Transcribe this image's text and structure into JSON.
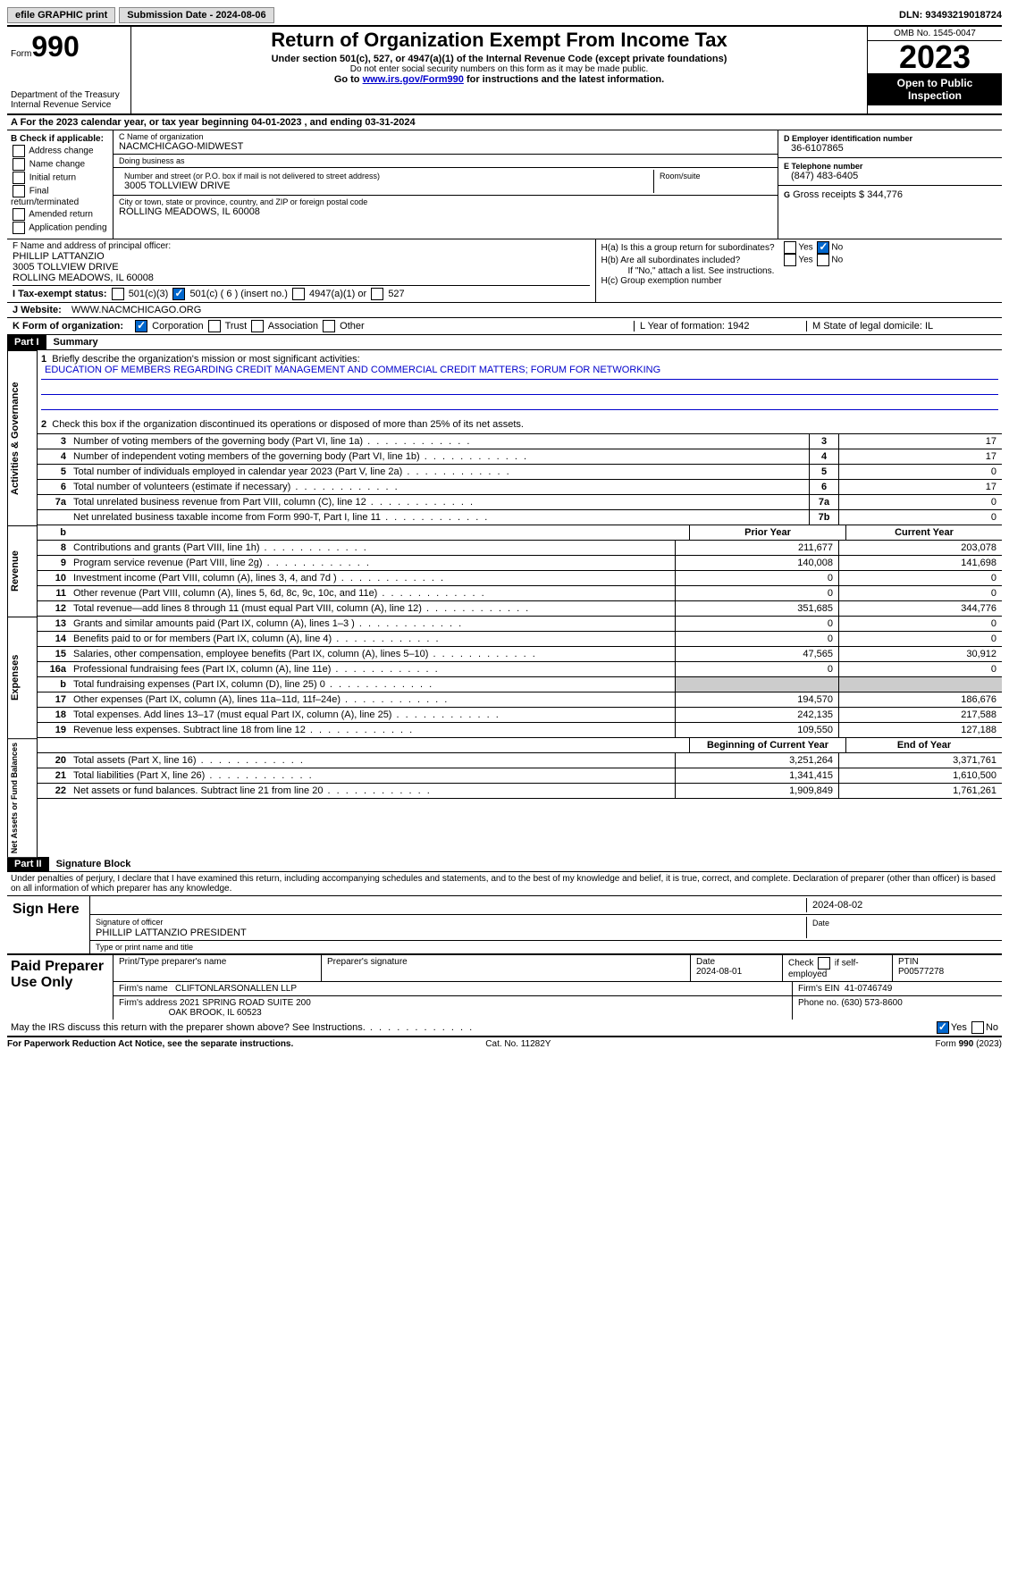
{
  "topbar": {
    "efile": "efile GRAPHIC print",
    "submission": "Submission Date - 2024-08-06",
    "dln": "DLN: 93493219018724"
  },
  "header": {
    "form_label": "Form",
    "form_num": "990",
    "dept": "Department of the Treasury\nInternal Revenue Service",
    "title": "Return of Organization Exempt From Income Tax",
    "sub": "Under section 501(c), 527, or 4947(a)(1) of the Internal Revenue Code (except private foundations)",
    "sub2": "Do not enter social security numbers on this form as it may be made public.",
    "go_pre": "Go to ",
    "go_link": "www.irs.gov/Form990",
    "go_post": " for instructions and the latest information.",
    "omb": "OMB No. 1545-0047",
    "year": "2023",
    "open": "Open to Public Inspection"
  },
  "A": {
    "text": "A For the 2023 calendar year, or tax year beginning 04-01-2023   , and ending 03-31-2024"
  },
  "B": {
    "label": "B Check if applicable:",
    "opts": [
      "Address change",
      "Name change",
      "Initial return",
      "Final return/terminated",
      "Amended return",
      "Application pending"
    ]
  },
  "C": {
    "name_lbl": "C Name of organization",
    "name": "NACMCHICAGO-MIDWEST",
    "dba_lbl": "Doing business as",
    "dba": "",
    "addr_lbl": "Number and street (or P.O. box if mail is not delivered to street address)",
    "addr": "3005 TOLLVIEW DRIVE",
    "room_lbl": "Room/suite",
    "city_lbl": "City or town, state or province, country, and ZIP or foreign postal code",
    "city": "ROLLING MEADOWS, IL  60008"
  },
  "D": {
    "lbl": "D Employer identification number",
    "val": "36-6107865"
  },
  "E": {
    "lbl": "E Telephone number",
    "val": "(847) 483-6405"
  },
  "G": {
    "lbl": "G",
    "text": "Gross receipts $ 344,776"
  },
  "F": {
    "lbl": "F  Name and address of principal officer:",
    "name": "PHILLIP LATTANZIO",
    "addr1": "3005 TOLLVIEW DRIVE",
    "addr2": "ROLLING MEADOWS, IL  60008"
  },
  "H": {
    "a": "H(a)  Is this a group return for subordinates?",
    "b": "H(b)  Are all subordinates included?",
    "b2": "If \"No,\" attach a list. See instructions.",
    "c": "H(c)  Group exemption number"
  },
  "I": {
    "lbl": "I   Tax-exempt status:",
    "o1": "501(c)(3)",
    "o2": "501(c) ( 6 ) (insert no.)",
    "o3": "4947(a)(1) or",
    "o4": "527"
  },
  "J": {
    "lbl": "J   Website:",
    "val": "WWW.NACMCHICAGO.ORG"
  },
  "K": {
    "lbl": "K Form of organization:",
    "o1": "Corporation",
    "o2": "Trust",
    "o3": "Association",
    "o4": "Other"
  },
  "L": {
    "text": "L Year of formation: 1942"
  },
  "M": {
    "text": "M State of legal domicile: IL"
  },
  "part1": {
    "num": "Part I",
    "title": "Summary"
  },
  "vtabs": {
    "ag": "Activities & Governance",
    "rev": "Revenue",
    "exp": "Expenses",
    "na": "Net Assets or Fund Balances"
  },
  "summary": {
    "q1": "Briefly describe the organization's mission or most significant activities:",
    "mission": "EDUCATION OF MEMBERS REGARDING CREDIT MANAGEMENT AND COMMERCIAL CREDIT MATTERS; FORUM FOR NETWORKING",
    "q2": "Check this box      if the organization discontinued its operations or disposed of more than 25% of its net assets.",
    "rows_ag": [
      {
        "n": "3",
        "d": "Number of voting members of the governing body (Part VI, line 1a)",
        "cn": "3",
        "v": "17"
      },
      {
        "n": "4",
        "d": "Number of independent voting members of the governing body (Part VI, line 1b)",
        "cn": "4",
        "v": "17"
      },
      {
        "n": "5",
        "d": "Total number of individuals employed in calendar year 2023 (Part V, line 2a)",
        "cn": "5",
        "v": "0"
      },
      {
        "n": "6",
        "d": "Total number of volunteers (estimate if necessary)",
        "cn": "6",
        "v": "17"
      },
      {
        "n": "7a",
        "d": "Total unrelated business revenue from Part VIII, column (C), line 12",
        "cn": "7a",
        "v": "0"
      },
      {
        "n": "",
        "d": "Net unrelated business taxable income from Form 990-T, Part I, line 11",
        "cn": "7b",
        "v": "0"
      }
    ],
    "col_prior": "Prior Year",
    "col_curr": "Current Year",
    "rows_rev": [
      {
        "n": "8",
        "d": "Contributions and grants (Part VIII, line 1h)",
        "p": "211,677",
        "c": "203,078"
      },
      {
        "n": "9",
        "d": "Program service revenue (Part VIII, line 2g)",
        "p": "140,008",
        "c": "141,698"
      },
      {
        "n": "10",
        "d": "Investment income (Part VIII, column (A), lines 3, 4, and 7d )",
        "p": "0",
        "c": "0"
      },
      {
        "n": "11",
        "d": "Other revenue (Part VIII, column (A), lines 5, 6d, 8c, 9c, 10c, and 11e)",
        "p": "0",
        "c": "0"
      },
      {
        "n": "12",
        "d": "Total revenue—add lines 8 through 11 (must equal Part VIII, column (A), line 12)",
        "p": "351,685",
        "c": "344,776"
      }
    ],
    "rows_exp": [
      {
        "n": "13",
        "d": "Grants and similar amounts paid (Part IX, column (A), lines 1–3 )",
        "p": "0",
        "c": "0"
      },
      {
        "n": "14",
        "d": "Benefits paid to or for members (Part IX, column (A), line 4)",
        "p": "0",
        "c": "0"
      },
      {
        "n": "15",
        "d": "Salaries, other compensation, employee benefits (Part IX, column (A), lines 5–10)",
        "p": "47,565",
        "c": "30,912"
      },
      {
        "n": "16a",
        "d": "Professional fundraising fees (Part IX, column (A), line 11e)",
        "p": "0",
        "c": "0"
      },
      {
        "n": "b",
        "d": "Total fundraising expenses (Part IX, column (D), line 25) 0",
        "p": "grey",
        "c": "grey"
      },
      {
        "n": "17",
        "d": "Other expenses (Part IX, column (A), lines 11a–11d, 11f–24e)",
        "p": "194,570",
        "c": "186,676"
      },
      {
        "n": "18",
        "d": "Total expenses. Add lines 13–17 (must equal Part IX, column (A), line 25)",
        "p": "242,135",
        "c": "217,588"
      },
      {
        "n": "19",
        "d": "Revenue less expenses. Subtract line 18 from line 12",
        "p": "109,550",
        "c": "127,188"
      }
    ],
    "col_beg": "Beginning of Current Year",
    "col_end": "End of Year",
    "rows_na": [
      {
        "n": "20",
        "d": "Total assets (Part X, line 16)",
        "p": "3,251,264",
        "c": "3,371,761"
      },
      {
        "n": "21",
        "d": "Total liabilities (Part X, line 26)",
        "p": "1,341,415",
        "c": "1,610,500"
      },
      {
        "n": "22",
        "d": "Net assets or fund balances. Subtract line 21 from line 20",
        "p": "1,909,849",
        "c": "1,761,261"
      }
    ]
  },
  "part2": {
    "num": "Part II",
    "title": "Signature Block"
  },
  "sig": {
    "note": "Under penalties of perjury, I declare that I have examined this return, including accompanying schedules and statements, and to the best of my knowledge and belief, it is true, correct, and complete. Declaration of preparer (other than officer) is based on all information of which preparer has any knowledge.",
    "sign_here": "Sign Here",
    "sig_officer_lbl": "Signature of officer",
    "officer": "PHILLIP LATTANZIO  PRESIDENT",
    "type_lbl": "Type or print name and title",
    "date_lbl": "Date",
    "date": "2024-08-02"
  },
  "prep": {
    "title": "Paid Preparer Use Only",
    "h1": "Print/Type preparer's name",
    "h2": "Preparer's signature",
    "h3_lbl": "Date",
    "h3": "2024-08-01",
    "h4": "Check      if self-employed",
    "h5_lbl": "PTIN",
    "h5": "P00577278",
    "firm_lbl": "Firm's name",
    "firm": "CLIFTONLARSONALLEN LLP",
    "ein_lbl": "Firm's EIN",
    "ein": "41-0746749",
    "addr_lbl": "Firm's address",
    "addr1": "2021 SPRING ROAD SUITE 200",
    "addr2": "OAK BROOK, IL  60523",
    "phone_lbl": "Phone no.",
    "phone": "(630) 573-8600"
  },
  "discuss": "May the IRS discuss this return with the preparer shown above? See Instructions.",
  "footer": {
    "l": "For Paperwork Reduction Act Notice, see the separate instructions.",
    "c": "Cat. No. 11282Y",
    "r": "Form 990 (2023)"
  }
}
